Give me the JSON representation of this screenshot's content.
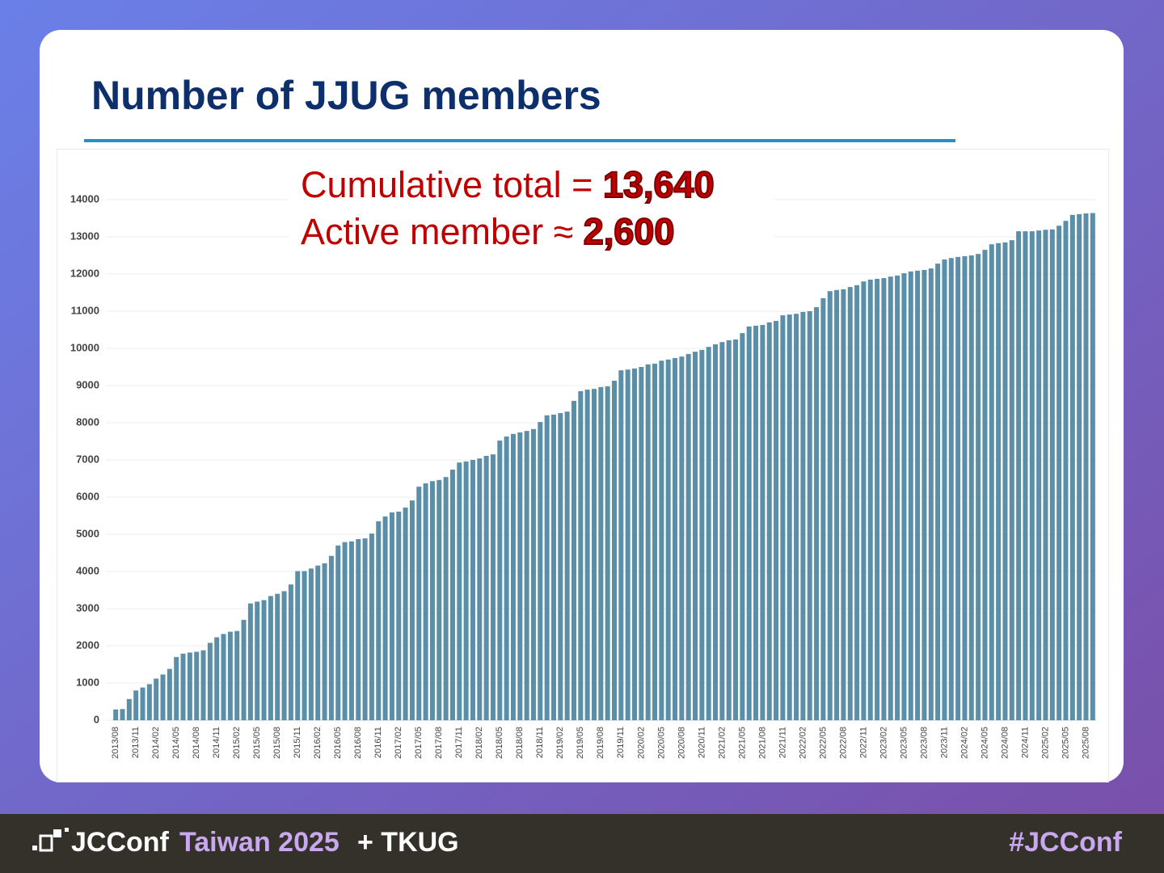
{
  "chart_data": {
    "type": "bar",
    "title": "Number of JJUG members",
    "annotations": {
      "cumulative_label": "Cumulative total =",
      "cumulative_value": "13,640",
      "active_label": "Active member ≈",
      "active_value": "2,600"
    },
    "color": "#5b8fa8",
    "grid": true,
    "ylim": [
      0,
      14000
    ],
    "yticks": [
      0,
      1000,
      2000,
      3000,
      4000,
      5000,
      6000,
      7000,
      8000,
      9000,
      10000,
      11000,
      12000,
      13000,
      14000
    ],
    "categories": [
      "2013/08",
      null,
      null,
      "2013/11",
      null,
      null,
      "2014/02",
      null,
      null,
      "2014/05",
      null,
      null,
      "2014/08",
      null,
      null,
      "2014/11",
      null,
      null,
      "2015/02",
      null,
      null,
      "2015/05",
      null,
      null,
      "2015/08",
      null,
      null,
      "2015/11",
      null,
      null,
      "2016/02",
      null,
      null,
      "2016/05",
      null,
      null,
      "2016/08",
      null,
      null,
      "2016/11",
      null,
      null,
      "2017/02",
      null,
      null,
      "2017/05",
      null,
      null,
      "2017/08",
      null,
      null,
      "2017/11",
      null,
      null,
      "2018/02",
      null,
      null,
      "2018/05",
      null,
      null,
      "2018/08",
      null,
      null,
      "2018/11",
      null,
      null,
      "2019/02",
      null,
      null,
      "2019/05",
      null,
      null,
      "2019/08",
      null,
      null,
      "2019/11",
      null,
      null,
      "2020/02",
      null,
      null,
      "2020/05",
      null,
      null,
      "2020/08",
      null,
      null,
      "2020/11",
      null,
      null,
      "2021/02",
      null,
      null,
      "2021/05",
      null,
      null,
      "2021/08",
      null,
      null,
      "2021/11",
      null,
      null,
      "2022/02",
      null,
      null,
      "2022/05",
      null,
      null,
      "2022/08",
      null,
      null,
      "2022/11",
      null,
      null,
      "2023/02",
      null,
      null,
      "2023/05",
      null,
      null,
      "2023/08",
      null,
      null,
      "2023/11",
      null,
      null,
      "2024/02",
      null,
      null,
      "2024/05",
      null,
      null,
      "2024/08",
      null,
      null,
      "2024/11",
      null,
      null,
      "2025/02",
      null,
      null,
      "2025/05",
      null,
      null,
      "2025/08",
      null
    ],
    "values": [
      290,
      300,
      570,
      800,
      880,
      970,
      1120,
      1230,
      1380,
      1700,
      1790,
      1820,
      1840,
      1880,
      2080,
      2230,
      2320,
      2380,
      2400,
      2700,
      3140,
      3190,
      3230,
      3340,
      3400,
      3470,
      3650,
      4010,
      4010,
      4080,
      4160,
      4220,
      4420,
      4700,
      4790,
      4810,
      4870,
      4890,
      5020,
      5350,
      5480,
      5590,
      5610,
      5720,
      5910,
      6280,
      6370,
      6430,
      6460,
      6540,
      6740,
      6930,
      6960,
      7000,
      7040,
      7110,
      7150,
      7520,
      7630,
      7700,
      7740,
      7780,
      7830,
      8020,
      8200,
      8220,
      8260,
      8300,
      8590,
      8850,
      8890,
      8910,
      8960,
      8980,
      9130,
      9410,
      9430,
      9460,
      9500,
      9570,
      9590,
      9670,
      9700,
      9740,
      9780,
      9850,
      9910,
      9960,
      10040,
      10110,
      10170,
      10220,
      10240,
      10410,
      10590,
      10610,
      10630,
      10700,
      10740,
      10890,
      10910,
      10930,
      10980,
      11000,
      11110,
      11350,
      11540,
      11570,
      11590,
      11650,
      11700,
      11800,
      11850,
      11870,
      11890,
      11930,
      11960,
      12020,
      12070,
      12090,
      12110,
      12150,
      12280,
      12390,
      12430,
      12460,
      12480,
      12500,
      12540,
      12650,
      12800,
      12830,
      12850,
      12910,
      13150,
      13150,
      13150,
      13170,
      13190,
      13200,
      13300,
      13430,
      13590,
      13610,
      13630,
      13640
    ]
  },
  "footer": {
    "brand": "JCConf",
    "event": "Taiwan 2025",
    "partner": "+ TKUG",
    "hashtag": "#JCConf"
  }
}
